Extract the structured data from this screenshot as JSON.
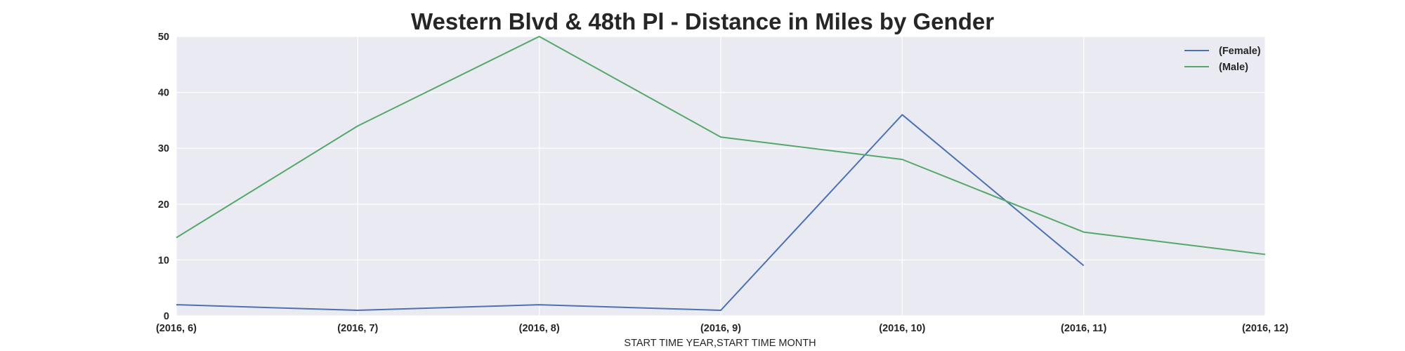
{
  "chart_data": {
    "type": "line",
    "title": "Western Blvd & 48th Pl - Distance in Miles by Gender",
    "xlabel": "START TIME YEAR,START TIME MONTH",
    "ylabel": "",
    "categories": [
      "(2016, 6)",
      "(2016, 7)",
      "(2016, 8)",
      "(2016, 9)",
      "(2016, 10)",
      "(2016, 11)",
      "(2016, 12)"
    ],
    "ylim": [
      0,
      50
    ],
    "yticks": [
      0,
      10,
      20,
      30,
      40,
      50
    ],
    "grid": true,
    "legend_position": "top-right",
    "series": [
      {
        "name": "(Female)",
        "color": "#4c72b0",
        "values": [
          2,
          1,
          2,
          1,
          36,
          9,
          null
        ]
      },
      {
        "name": "(Male)",
        "color": "#55a868",
        "values": [
          14,
          34,
          50,
          32,
          28,
          15,
          11
        ]
      }
    ]
  }
}
